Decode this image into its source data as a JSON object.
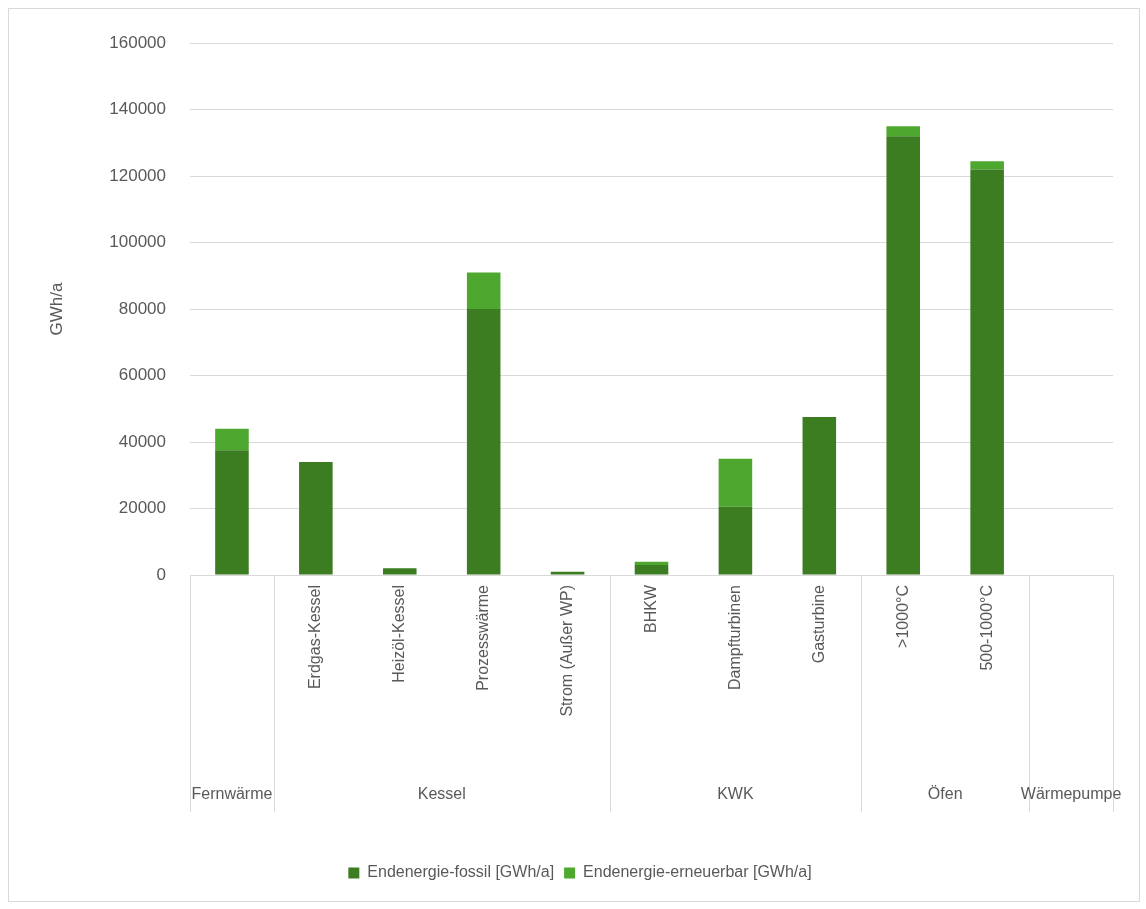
{
  "chart_data": {
    "type": "bar",
    "stacked": true,
    "categories": [
      null,
      "Erdgas-Kessel",
      "Heizöl-Kessel",
      "Prozesswärme",
      "Strom (Außer WP)",
      "BHKW",
      "Dampfturbinen",
      "Gasturbine",
      ">1000°C",
      "500-1000°C",
      null
    ],
    "series": [
      {
        "name": "Endenergie-fossil [GWh/a]",
        "color": "#3c7d22",
        "values": [
          37500,
          34000,
          2000,
          80000,
          1000,
          3000,
          20500,
          47500,
          132000,
          122000,
          0
        ]
      },
      {
        "name": "Endenergie-erneuerbar [GWh/a]",
        "color": "#4ea72e",
        "values": [
          6500,
          0,
          0,
          11000,
          0,
          1000,
          14500,
          0,
          3000,
          2500,
          0
        ]
      }
    ],
    "ylabel": "GWh/a",
    "ylim": [
      0,
      160000
    ],
    "yticks": [
      0,
      20000,
      40000,
      60000,
      80000,
      100000,
      120000,
      140000,
      160000
    ],
    "grid": "y",
    "legend": "bottom",
    "annotations": [
      "Fernwärme",
      "Kessel",
      "KWK",
      "Öfen",
      "Wärmepumpe"
    ]
  }
}
